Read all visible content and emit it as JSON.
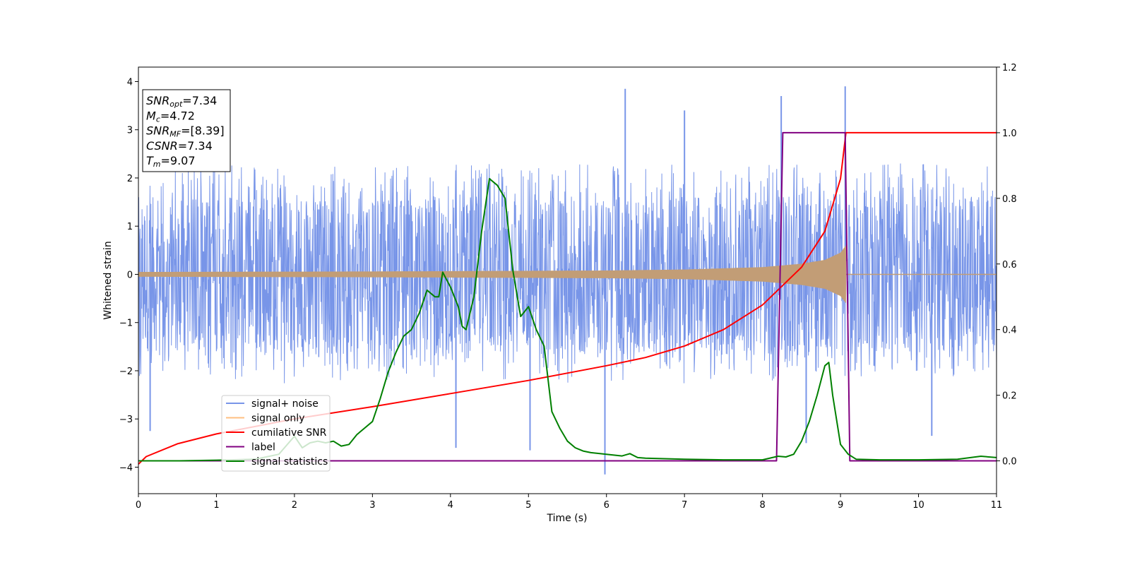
{
  "chart_data": {
    "type": "line",
    "xlabel": "Time (s)",
    "ylabel": "Whitened strain",
    "xlim": [
      0,
      11
    ],
    "ylim_left": [
      -4.55,
      4.3
    ],
    "ylim_right": [
      -0.1,
      1.2
    ],
    "x_ticks": [
      0,
      1,
      2,
      3,
      4,
      5,
      6,
      7,
      8,
      9,
      10,
      11
    ],
    "y_ticks_left": [
      -4,
      -3,
      -2,
      -1,
      0,
      1,
      2,
      3,
      4
    ],
    "y_ticks_left_labels": [
      "−4",
      "−3",
      "−2",
      "−1",
      "0",
      "1",
      "2",
      "3",
      "4"
    ],
    "y_ticks_right": [
      0.0,
      0.2,
      0.4,
      0.6,
      0.8,
      1.0,
      1.2
    ],
    "y_ticks_right_labels": [
      "0.0",
      "0.2",
      "0.4",
      "0.6",
      "0.8",
      "1.0",
      "1.2"
    ],
    "grid": false,
    "legend_position": "lower-left",
    "annotation": {
      "position": "top-left",
      "lines": [
        {
          "name": "SNR",
          "sub": "opt",
          "value": "=7.34"
        },
        {
          "name": "M",
          "sub": "c",
          "value": "=4.72"
        },
        {
          "name": "SNR",
          "sub": "MF",
          "value": "=[8.39]"
        },
        {
          "name": "CSNR",
          "sub": "",
          "value": "=7.34"
        },
        {
          "name": "T",
          "sub": "m",
          "value": "=9.07"
        }
      ]
    },
    "series": [
      {
        "name": "signal+ noise",
        "axis": "left",
        "color": "#7895e8",
        "kind": "noise",
        "x_range": [
          0,
          11
        ],
        "typical_envelope": [
          -2.0,
          2.3
        ],
        "spikes": [
          [
            8.24,
            3.7
          ],
          [
            9.06,
            3.9
          ],
          [
            6.24,
            3.85
          ],
          [
            7.0,
            3.4
          ],
          [
            5.98,
            -4.15
          ],
          [
            5.02,
            -3.65
          ],
          [
            4.07,
            -3.6
          ],
          [
            0.15,
            -3.25
          ],
          [
            10.17,
            -3.35
          ],
          [
            8.56,
            -3.5
          ]
        ]
      },
      {
        "name": "signal only",
        "axis": "left",
        "color": "#c29d76",
        "legend_color": "#ffbf80",
        "kind": "chirp",
        "x_range": [
          0,
          9.07
        ],
        "envelope": [
          [
            0,
            0.05
          ],
          [
            3,
            0.06
          ],
          [
            6,
            0.08
          ],
          [
            7,
            0.1
          ],
          [
            8,
            0.15
          ],
          [
            8.5,
            0.22
          ],
          [
            8.8,
            0.3
          ],
          [
            9.0,
            0.45
          ],
          [
            9.07,
            0.6
          ]
        ]
      },
      {
        "name": "cumilative SNR",
        "axis": "right",
        "color": "#ff0000",
        "x": [
          0,
          0.1,
          0.5,
          1,
          2,
          3,
          4,
          5,
          6,
          6.5,
          7,
          7.5,
          8,
          8.5,
          8.8,
          9.0,
          9.07,
          11
        ],
        "y": [
          -0.01,
          0.013,
          0.052,
          0.082,
          0.128,
          0.165,
          0.205,
          0.245,
          0.29,
          0.315,
          0.35,
          0.4,
          0.475,
          0.59,
          0.7,
          0.86,
          1.0,
          1.0
        ]
      },
      {
        "name": "label",
        "axis": "right",
        "color": "#800080",
        "x": [
          0,
          8.18,
          8.26,
          9.06,
          9.12,
          11
        ],
        "y": [
          0,
          0,
          1.0,
          1.0,
          0,
          0
        ]
      },
      {
        "name": "signal statistics",
        "axis": "right",
        "color": "#008000",
        "x": [
          0,
          0.5,
          1.0,
          1.5,
          1.8,
          2.0,
          2.1,
          2.2,
          2.3,
          2.4,
          2.5,
          2.6,
          2.7,
          2.8,
          2.9,
          3.0,
          3.1,
          3.2,
          3.3,
          3.4,
          3.5,
          3.6,
          3.7,
          3.8,
          3.85,
          3.9,
          4.0,
          4.1,
          4.15,
          4.2,
          4.3,
          4.4,
          4.5,
          4.6,
          4.7,
          4.8,
          4.9,
          5.0,
          5.1,
          5.2,
          5.3,
          5.4,
          5.5,
          5.6,
          5.7,
          5.8,
          6.0,
          6.2,
          6.3,
          6.4,
          6.5,
          7.0,
          7.5,
          8.0,
          8.2,
          8.3,
          8.4,
          8.5,
          8.6,
          8.7,
          8.8,
          8.85,
          8.9,
          9.0,
          9.1,
          9.2,
          9.5,
          10.0,
          10.5,
          10.8,
          11.0
        ],
        "y": [
          0.0,
          0.0,
          0.002,
          0.005,
          0.02,
          0.075,
          0.04,
          0.055,
          0.06,
          0.055,
          0.06,
          0.045,
          0.05,
          0.08,
          0.1,
          0.12,
          0.19,
          0.27,
          0.33,
          0.38,
          0.4,
          0.45,
          0.52,
          0.5,
          0.5,
          0.575,
          0.53,
          0.47,
          0.41,
          0.4,
          0.5,
          0.7,
          0.86,
          0.84,
          0.8,
          0.58,
          0.44,
          0.47,
          0.4,
          0.35,
          0.15,
          0.1,
          0.06,
          0.04,
          0.03,
          0.025,
          0.02,
          0.015,
          0.022,
          0.01,
          0.008,
          0.005,
          0.003,
          0.003,
          0.014,
          0.012,
          0.02,
          0.06,
          0.12,
          0.2,
          0.29,
          0.3,
          0.2,
          0.05,
          0.02,
          0.005,
          0.003,
          0.003,
          0.005,
          0.014,
          0.01
        ]
      }
    ]
  }
}
